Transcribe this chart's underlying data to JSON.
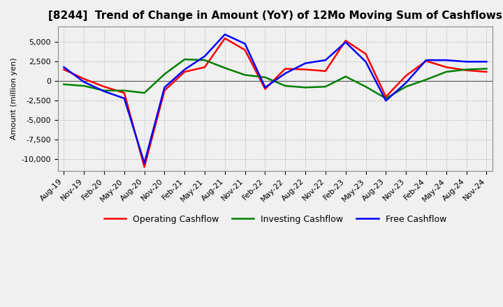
{
  "title": "[8244]  Trend of Change in Amount (YoY) of 12Mo Moving Sum of Cashflows",
  "ylabel": "Amount (million yen)",
  "background_color": "#f0f0f0",
  "plot_bg_color": "#f0f0f0",
  "grid_color": "#aaaaaa",
  "x_labels": [
    "Aug-19",
    "Nov-19",
    "Feb-20",
    "May-20",
    "Aug-20",
    "Nov-20",
    "Feb-21",
    "May-21",
    "Aug-21",
    "Nov-21",
    "Feb-22",
    "May-22",
    "Aug-22",
    "Nov-22",
    "Feb-23",
    "May-23",
    "Aug-23",
    "Nov-23",
    "Feb-24",
    "May-24",
    "Aug-24",
    "Nov-24"
  ],
  "operating": [
    1500,
    300,
    -700,
    -1500,
    -11000,
    -1200,
    1200,
    1800,
    5500,
    4000,
    -1000,
    1600,
    1500,
    1300,
    5200,
    3500,
    -2000,
    700,
    2600,
    1800,
    1400,
    1200
  ],
  "investing": [
    -400,
    -600,
    -1200,
    -1200,
    -1500,
    900,
    2800,
    2700,
    1700,
    800,
    500,
    -600,
    -800,
    -700,
    600,
    -700,
    -2200,
    -700,
    200,
    1200,
    1500,
    1600
  ],
  "free": [
    1800,
    -100,
    -1300,
    -2200,
    -10500,
    -800,
    1500,
    3200,
    6000,
    4800,
    -800,
    1000,
    2300,
    2700,
    5000,
    2500,
    -2500,
    -200,
    2700,
    2700,
    2500,
    2500
  ],
  "operating_color": "#ff0000",
  "investing_color": "#008000",
  "free_color": "#0000ff",
  "ylim": [
    -11500,
    7000
  ],
  "yticks": [
    -10000,
    -7500,
    -5000,
    -2500,
    0,
    2500,
    5000
  ],
  "line_width": 1.8,
  "title_fontsize": 11,
  "tick_fontsize": 8,
  "legend_fontsize": 9
}
